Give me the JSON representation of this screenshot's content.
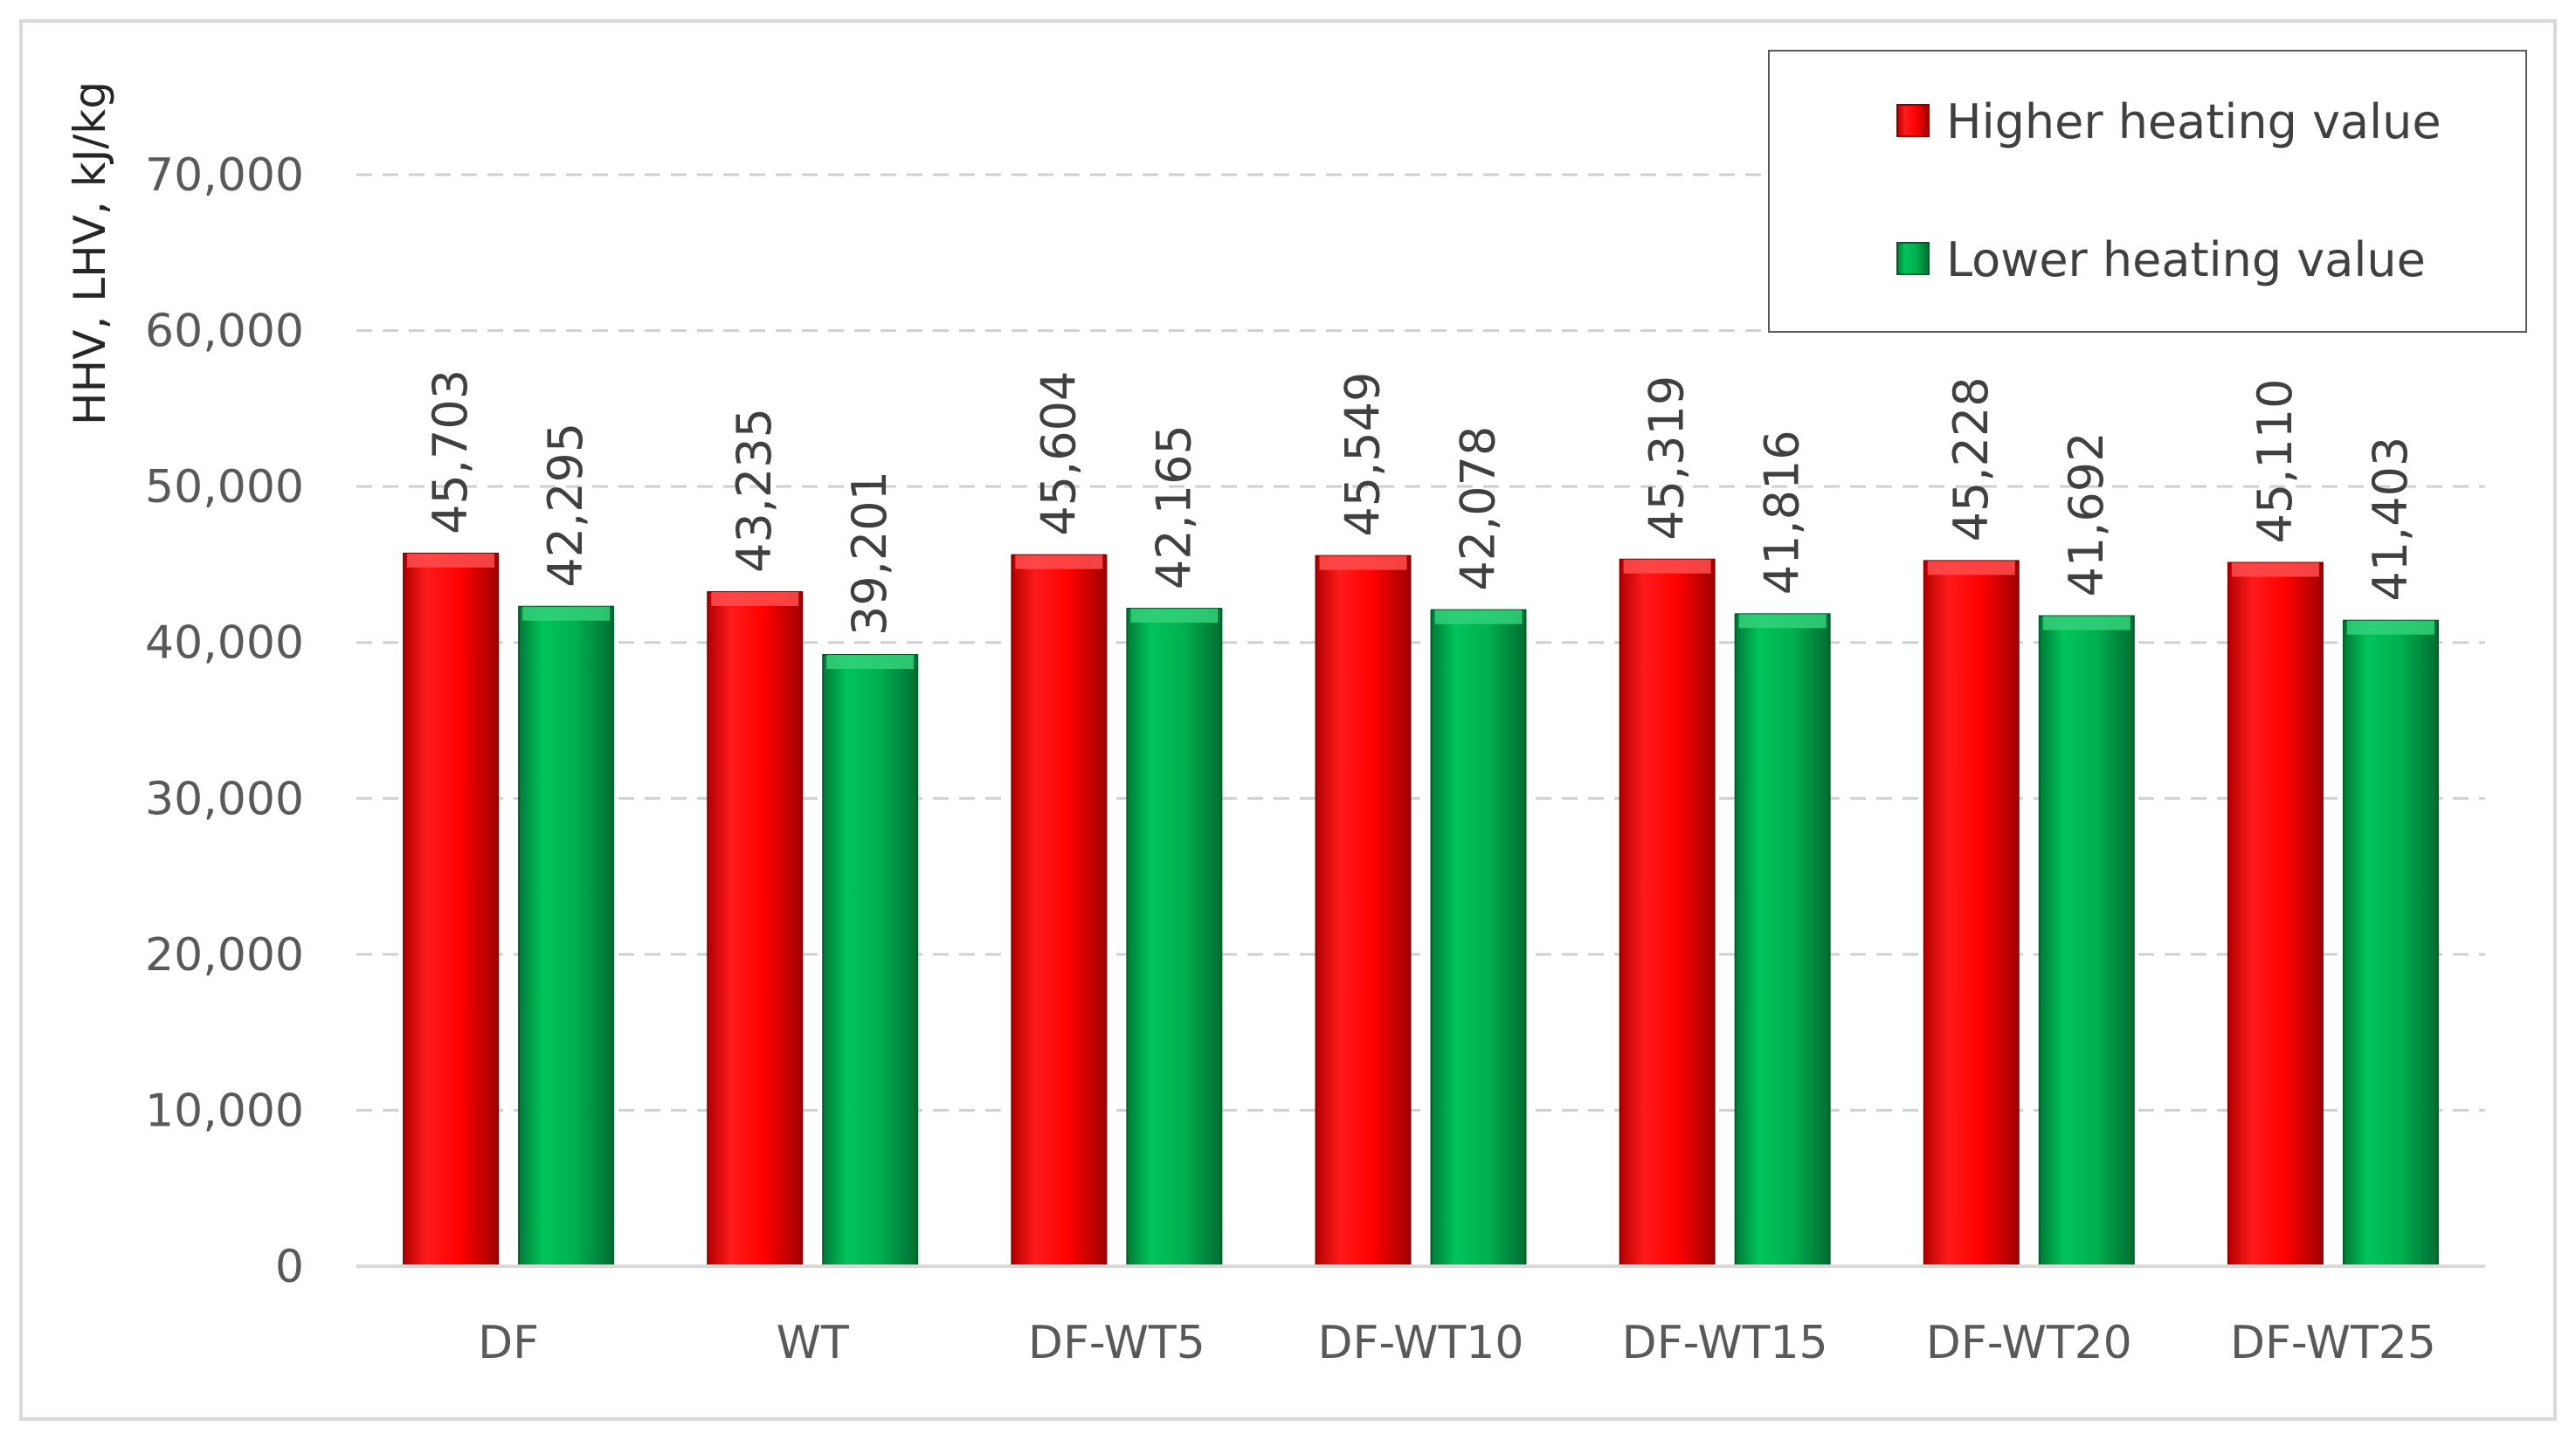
{
  "chart_data": {
    "type": "bar",
    "categories": [
      "DF",
      "WT",
      "DF-WT5",
      "DF-WT10",
      "DF-WT15",
      "DF-WT20",
      "DF-WT25"
    ],
    "series": [
      {
        "name": "Higher heating value",
        "color": "#ff0000",
        "values": [
          45703,
          43235,
          45604,
          45549,
          45319,
          45228,
          45110
        ],
        "labels": [
          "45,703",
          "43,235",
          "45,604",
          "45,549",
          "45,319",
          "45,228",
          "45,110"
        ]
      },
      {
        "name": "Lower heating value",
        "color": "#00b050",
        "values": [
          42295,
          39201,
          42165,
          42078,
          41816,
          41692,
          41403
        ],
        "labels": [
          "42,295",
          "39,201",
          "42,165",
          "42,078",
          "41,816",
          "41,692",
          "41,403"
        ]
      }
    ],
    "ylabel": "HHV, LHV, kJ/kg",
    "xlabel": "",
    "ylim": [
      0,
      70000
    ],
    "yticks": [
      0,
      10000,
      20000,
      30000,
      40000,
      50000,
      60000,
      70000
    ],
    "ytick_labels": [
      "0",
      "10,000",
      "20,000",
      "30,000",
      "40,000",
      "50,000",
      "60,000",
      "70,000"
    ],
    "grid": "dashed-horizontal",
    "legend": "top-right"
  }
}
